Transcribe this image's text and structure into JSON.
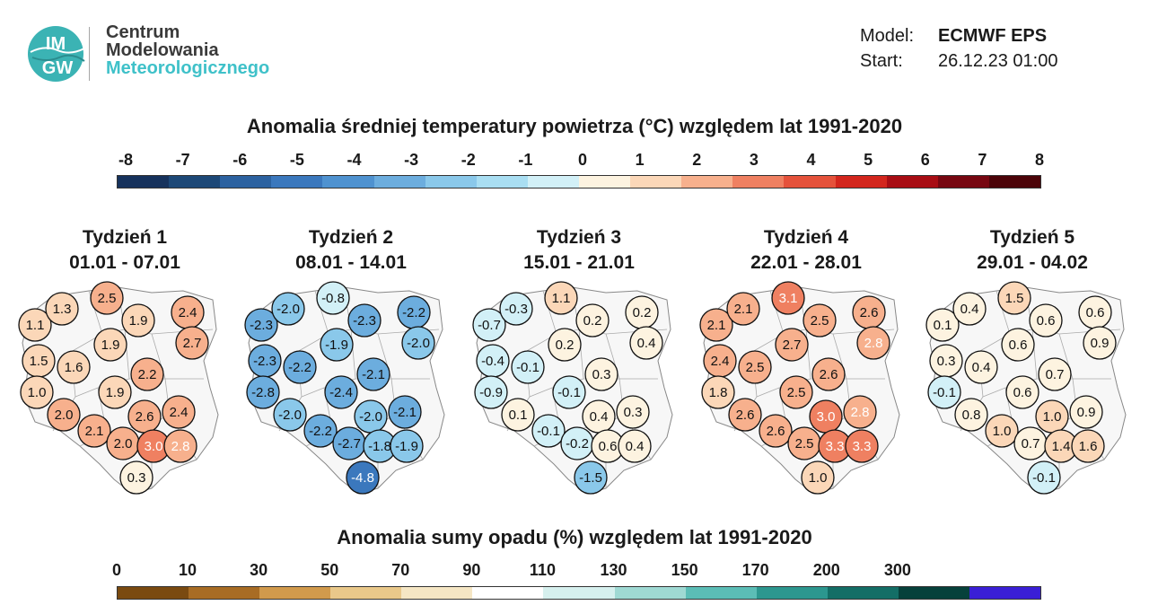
{
  "header": {
    "org_line1": "Centrum",
    "org_line2": "Modelowania",
    "org_line3": "Meteorologicznego",
    "logo_text_top": "IM",
    "logo_text_bottom": "GW",
    "model_label": "Model:",
    "model_value": "ECMWF EPS",
    "start_label": "Start:",
    "start_value": "26.12.23 01:00"
  },
  "temperature_scale": {
    "title": "Anomalia średniej temperatury powietrza (°C) względem lat 1991-2020",
    "ticks": [
      "-8",
      "-7",
      "-6",
      "-5",
      "-4",
      "-3",
      "-2",
      "-1",
      "0",
      "1",
      "2",
      "3",
      "4",
      "5",
      "6",
      "7",
      "8"
    ],
    "colors": [
      "#16325c",
      "#1d4877",
      "#2c62a0",
      "#3b78bd",
      "#4f92d0",
      "#6cadde",
      "#8ac8ea",
      "#a9def2",
      "#d2f0f7",
      "#fdf3e0",
      "#fbd7b8",
      "#f7b08d",
      "#ef8061",
      "#e5523b",
      "#d3261d",
      "#a80d14",
      "#770711",
      "#4c0409"
    ]
  },
  "precip_scale": {
    "title": "Anomalia sumy opadu (%) względem lat 1991-2020",
    "ticks": [
      "0",
      "10",
      "30",
      "50",
      "70",
      "90",
      "110",
      "130",
      "150",
      "170",
      "200",
      "300"
    ],
    "colors": [
      "#7a4a10",
      "#a86c24",
      "#d19a4c",
      "#e9c88a",
      "#f5e6c4",
      "#ffffff",
      "#d6f0ee",
      "#9fd9d3",
      "#5bbdb6",
      "#2c978f",
      "#136e66",
      "#06413b",
      "#3a1fd6"
    ]
  },
  "weeks": [
    {
      "label": "Tydzień 1",
      "dates": "01.01 - 07.01",
      "values": [
        "1.1",
        "1.3",
        "2.5",
        "2.4",
        "1.9",
        "2.7",
        "1.5",
        "1.6",
        "1.9",
        "2.2",
        "1.0",
        "1.9",
        "2.0",
        "2.4",
        "2.6",
        "2.1",
        "2.0",
        "3.0",
        "2.8",
        "0.3"
      ]
    },
    {
      "label": "Tydzień 2",
      "dates": "08.01 - 14.01",
      "values": [
        "-2.3",
        "-2.0",
        "-0.8",
        "-2.2",
        "-2.3",
        "-2.0",
        "-2.3",
        "-2.2",
        "-1.9",
        "-2.1",
        "-2.8",
        "-2.4",
        "-2.0",
        "-2.1",
        "-2.0",
        "-2.2",
        "-2.7",
        "-1.8",
        "-1.9",
        "-4.8"
      ]
    },
    {
      "label": "Tydzień 3",
      "dates": "15.01 - 21.01",
      "values": [
        "-0.7",
        "-0.3",
        "1.1",
        "0.2",
        "0.2",
        "0.4",
        "-0.4",
        "-0.1",
        "0.2",
        "0.3",
        "-0.9",
        "-0.1",
        "0.1",
        "0.3",
        "0.4",
        "-0.1",
        "-0.2",
        "0.6",
        "0.4",
        "-1.5"
      ]
    },
    {
      "label": "Tydzień 4",
      "dates": "22.01 - 28.01",
      "values": [
        "2.1",
        "2.1",
        "3.1",
        "2.6",
        "2.5",
        "2.8",
        "2.4",
        "2.5",
        "2.7",
        "2.6",
        "1.8",
        "2.5",
        "2.6",
        "2.8",
        "3.0",
        "2.6",
        "2.5",
        "3.3",
        "3.3",
        "1.0"
      ]
    },
    {
      "label": "Tydzień 5",
      "dates": "29.01 - 04.02",
      "values": [
        "0.1",
        "0.4",
        "1.5",
        "0.6",
        "0.6",
        "0.9",
        "0.3",
        "0.4",
        "0.6",
        "0.7",
        "-0.1",
        "0.6",
        "0.8",
        "0.9",
        "1.0",
        "1.0",
        "0.7",
        "1.4",
        "1.6",
        "-0.1"
      ]
    }
  ]
}
